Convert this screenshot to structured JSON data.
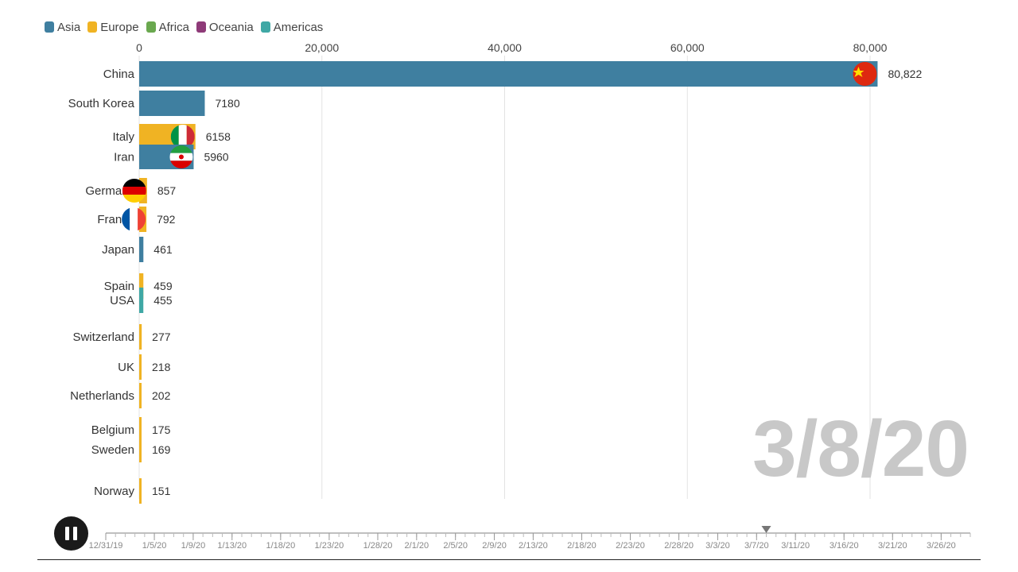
{
  "legend": [
    {
      "label": "Asia",
      "color": "#3f7fa0"
    },
    {
      "label": "Europe",
      "color": "#f0b323"
    },
    {
      "label": "Africa",
      "color": "#6aa84f"
    },
    {
      "label": "Oceania",
      "color": "#8e3a78"
    },
    {
      "label": "Americas",
      "color": "#3fa8a5"
    }
  ],
  "chart_data": {
    "type": "bar",
    "orientation": "horizontal",
    "xlim": [
      0,
      84000
    ],
    "x_ticks": [
      "0",
      "20,000",
      "40,000",
      "60,000",
      "80,000"
    ],
    "x_tick_values": [
      0,
      20000,
      40000,
      60000,
      80000
    ],
    "grid": true,
    "legend_position": "top-left",
    "bars": [
      {
        "name": "China",
        "value": 80822,
        "value_label": "80,822",
        "region": "Asia",
        "flag": "china-flag-icon"
      },
      {
        "name": "South Korea",
        "value": 7180,
        "value_label": "7180",
        "region": "Asia",
        "flag": ""
      },
      {
        "name": "Italy",
        "value": 6158,
        "value_label": "6158",
        "region": "Europe",
        "flag": "italy-flag-icon"
      },
      {
        "name": "Iran",
        "value": 5960,
        "value_label": "5960",
        "region": "Asia",
        "flag": "iran-flag-icon"
      },
      {
        "name": "Germany",
        "value": 857,
        "value_label": "857",
        "region": "Europe",
        "flag": "germany-flag-icon"
      },
      {
        "name": "France",
        "value": 792,
        "value_label": "792",
        "region": "Europe",
        "flag": "france-flag-icon"
      },
      {
        "name": "Japan",
        "value": 461,
        "value_label": "461",
        "region": "Asia",
        "flag": ""
      },
      {
        "name": "Spain",
        "value": 459,
        "value_label": "459",
        "region": "Europe",
        "flag": ""
      },
      {
        "name": "USA",
        "value": 455,
        "value_label": "455",
        "region": "Americas",
        "flag": ""
      },
      {
        "name": "Switzerland",
        "value": 277,
        "value_label": "277",
        "region": "Europe",
        "flag": ""
      },
      {
        "name": "UK",
        "value": 218,
        "value_label": "218",
        "region": "Europe",
        "flag": ""
      },
      {
        "name": "Netherlands",
        "value": 202,
        "value_label": "202",
        "region": "Europe",
        "flag": ""
      },
      {
        "name": "Belgium",
        "value": 175,
        "value_label": "175",
        "region": "Europe",
        "flag": ""
      },
      {
        "name": "Sweden",
        "value": 169,
        "value_label": "169",
        "region": "Europe",
        "flag": ""
      },
      {
        "name": "Norway",
        "value": 151,
        "value_label": "151",
        "region": "Europe",
        "flag": ""
      }
    ]
  },
  "current_date": "3/8/20",
  "timeline": {
    "labels": [
      "12/31/19",
      "1/5/20",
      "1/9/20",
      "1/13/20",
      "1/18/20",
      "1/23/20",
      "1/28/20",
      "2/1/20",
      "2/5/20",
      "2/9/20",
      "2/13/20",
      "2/18/20",
      "2/23/20",
      "2/28/20",
      "3/3/20",
      "3/7/20",
      "3/11/20",
      "3/16/20",
      "3/21/20",
      "3/26/20"
    ],
    "start_date": "12/31/19",
    "end_date": "3/29/20",
    "current": "3/8/20"
  },
  "controls": {
    "play_state": "pause-icon"
  }
}
